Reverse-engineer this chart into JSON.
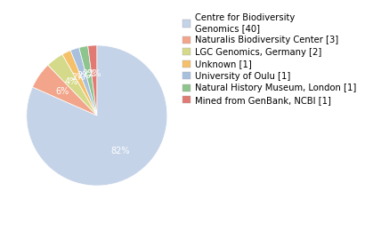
{
  "labels": [
    "Centre for Biodiversity\nGenomics [40]",
    "Naturalis Biodiversity Center [3]",
    "LGC Genomics, Germany [2]",
    "Unknown [1]",
    "University of Oulu [1]",
    "Natural History Museum, London [1]",
    "Mined from GenBank, NCBI [1]"
  ],
  "values": [
    40,
    3,
    2,
    1,
    1,
    1,
    1
  ],
  "colors": [
    "#c5d3e8",
    "#f2a58a",
    "#d5da8a",
    "#f5c06a",
    "#a8c0de",
    "#8ec48e",
    "#e07a72"
  ],
  "text_color": "white",
  "legend_fontsize": 7.2,
  "pct_fontsize": 7,
  "startangle": 90
}
